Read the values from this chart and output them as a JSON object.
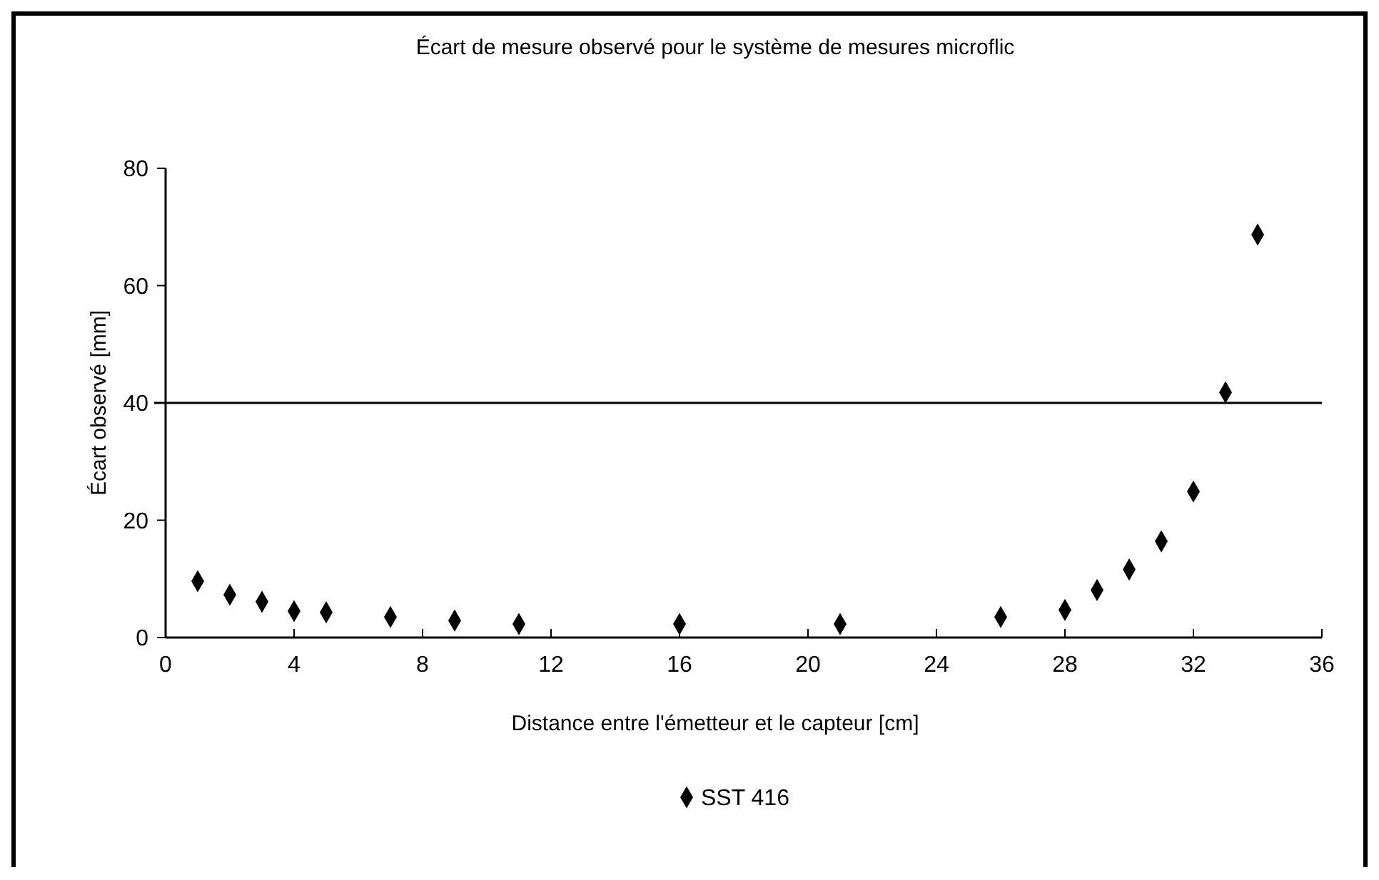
{
  "chart_data": {
    "type": "scatter",
    "title": "Écart de mesure observé pour le système de mesures microflic",
    "xlabel": "Distance entre l'émetteur et le capteur [cm]",
    "ylabel": "Écart observé [mm]",
    "x": [
      1,
      2,
      3,
      4,
      5,
      7,
      9,
      11,
      16,
      21,
      26,
      28,
      29,
      30,
      31,
      32,
      33,
      34
    ],
    "series": [
      {
        "name": "SST 416",
        "color": "#000000",
        "values": [
          9.6,
          7.3,
          6.1,
          4.5,
          4.3,
          3.5,
          2.9,
          2.3,
          2.3,
          2.3,
          3.5,
          4.7,
          8.1,
          11.6,
          16.4,
          24.9,
          41.8,
          68.7
        ]
      }
    ],
    "xlim": [
      0,
      36
    ],
    "xticks": [
      0,
      4,
      8,
      12,
      16,
      20,
      24,
      28,
      32,
      36
    ],
    "ylim": [
      0,
      80
    ],
    "yticks": [
      0,
      20,
      40,
      60,
      80
    ],
    "ref_lines": [
      {
        "axis": "y",
        "value": 40,
        "color": "#000000"
      }
    ],
    "marker": "diamond",
    "grid": false,
    "legend": "bottom"
  }
}
